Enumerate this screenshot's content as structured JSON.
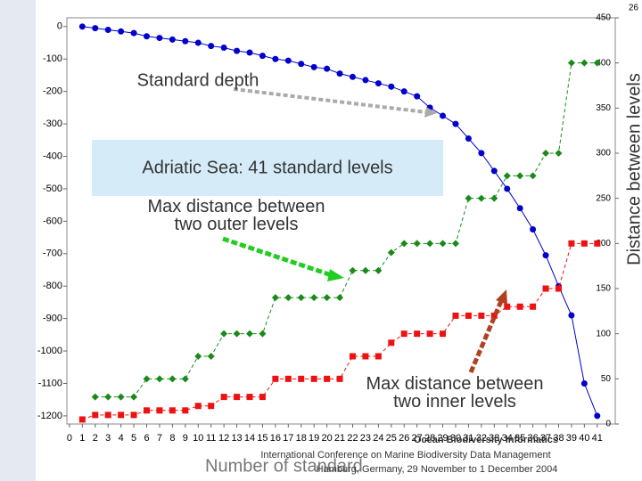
{
  "chart_data": {
    "type": "line",
    "annotations": [
      "Standard depth",
      "Adriatic Sea: 41 standard levels",
      "Max distance between two outer levels",
      "Max distance between two inner levels"
    ],
    "x_label": "Number of standard",
    "y2_label": "Distance between levels",
    "footer": [
      "Ocean Biodiversity Informatics",
      "International Conference on Marine Biodiversity Data Management",
      "Hamburg, Germany, 29 November to 1 December 2004"
    ],
    "page_number": "26",
    "x": [
      1,
      2,
      3,
      4,
      5,
      6,
      7,
      8,
      9,
      10,
      11,
      12,
      13,
      14,
      15,
      16,
      17,
      18,
      19,
      20,
      21,
      22,
      23,
      24,
      25,
      26,
      27,
      28,
      29,
      30,
      31,
      32,
      33,
      34,
      35,
      36,
      37,
      38,
      39,
      40,
      41
    ],
    "xlim": [
      -0.2,
      42.4
    ],
    "xticks": [
      0,
      1,
      2,
      3,
      4,
      5,
      6,
      7,
      8,
      9,
      10,
      11,
      12,
      13,
      14,
      15,
      16,
      17,
      18,
      19,
      20,
      21,
      22,
      23,
      24,
      25,
      26,
      27,
      28,
      29,
      30,
      31,
      32,
      33,
      34,
      35,
      36,
      37,
      38,
      39,
      40,
      41
    ],
    "ylim": [
      -1225,
      27
    ],
    "yticks": [
      0,
      -100,
      -200,
      -300,
      -400,
      -500,
      -600,
      -700,
      -800,
      -900,
      -1000,
      -1100,
      -1200
    ],
    "y2lim": [
      0,
      450
    ],
    "y2ticks": [
      0,
      50,
      100,
      150,
      200,
      250,
      300,
      350,
      400,
      450
    ],
    "series": [
      {
        "name": "Standard depth",
        "color": "#0000cc",
        "marker": "circle",
        "dashed": false,
        "values": [
          0,
          -5,
          -10,
          -15,
          -20,
          -30,
          -35,
          -40,
          -45,
          -50,
          -60,
          -65,
          -75,
          -80,
          -90,
          -100,
          -105,
          -115,
          -125,
          -130,
          -145,
          -155,
          -165,
          -175,
          -185,
          -200,
          -215,
          -250,
          -275,
          -300,
          -345,
          -390,
          -445,
          -500,
          -560,
          -625,
          -705,
          -800,
          -890,
          -1100,
          -1200
        ]
      },
      {
        "name": "Max distance between two outer levels",
        "color": "#1a8a1a",
        "marker": "diamond",
        "dashed": true,
        "axis": "y2",
        "values": [
          null,
          30,
          30,
          30,
          30,
          50,
          50,
          50,
          50,
          75,
          75,
          100,
          100,
          100,
          100,
          140,
          140,
          140,
          140,
          140,
          140,
          170,
          170,
          170,
          190,
          200,
          200,
          200,
          200,
          200,
          250,
          250,
          250,
          275,
          275,
          275,
          300,
          300,
          400,
          400,
          400
        ]
      },
      {
        "name": "Max distance between two inner levels",
        "color": "#ee1111",
        "marker": "square",
        "dashed": true,
        "axis": "y2",
        "values": [
          5,
          10,
          10,
          10,
          10,
          15,
          15,
          15,
          15,
          20,
          20,
          30,
          30,
          30,
          30,
          50,
          50,
          50,
          50,
          50,
          50,
          75,
          75,
          75,
          90,
          100,
          100,
          100,
          100,
          120,
          120,
          120,
          120,
          130,
          130,
          130,
          150,
          150,
          200,
          200,
          200
        ]
      }
    ]
  }
}
